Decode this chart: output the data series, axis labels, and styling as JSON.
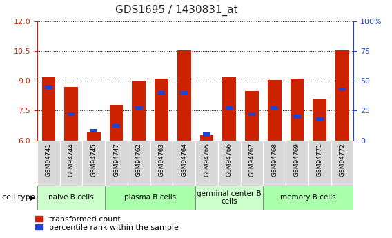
{
  "title": "GDS1695 / 1430831_at",
  "samples": [
    "GSM94741",
    "GSM94744",
    "GSM94745",
    "GSM94747",
    "GSM94762",
    "GSM94763",
    "GSM94764",
    "GSM94765",
    "GSM94766",
    "GSM94767",
    "GSM94768",
    "GSM94769",
    "GSM94771",
    "GSM94772"
  ],
  "transformed_count": [
    9.2,
    8.7,
    6.4,
    7.8,
    9.0,
    9.1,
    10.55,
    6.3,
    9.2,
    8.5,
    9.05,
    9.1,
    8.1,
    10.55
  ],
  "percentile_rank": [
    45,
    22,
    8,
    12,
    27,
    40,
    40,
    5,
    27,
    22,
    27,
    20,
    18,
    43
  ],
  "ylim_left": [
    6,
    12
  ],
  "ylim_right": [
    0,
    100
  ],
  "yticks_left": [
    6,
    7.5,
    9,
    10.5,
    12
  ],
  "yticks_right": [
    0,
    25,
    50,
    75,
    100
  ],
  "group_labels": [
    "naive B cells",
    "plasma B cells",
    "germinal center B\ncells",
    "memory B cells"
  ],
  "group_starts": [
    0,
    3,
    7,
    10
  ],
  "group_ends": [
    3,
    7,
    10,
    14
  ],
  "group_colors": [
    "#ccffcc",
    "#aaffaa",
    "#ccffcc",
    "#aaffaa"
  ],
  "bar_color": "#cc2200",
  "percentile_color": "#2244cc",
  "left_axis_color": "#cc2200",
  "right_axis_color": "#2244cc",
  "tick_bg_color": "#d8d8d8",
  "plot_bg_color": "#ffffff"
}
